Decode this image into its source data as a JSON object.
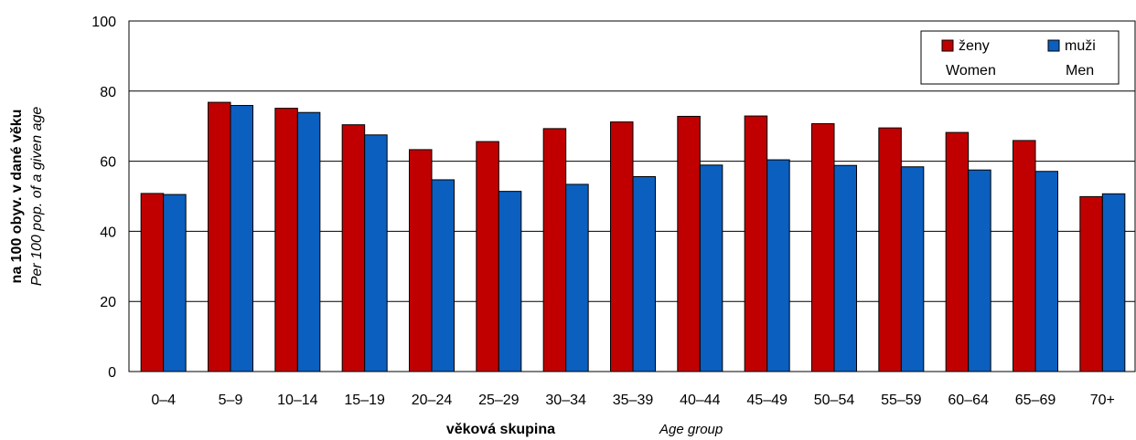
{
  "chart_data": {
    "type": "bar",
    "categories": [
      "0–4",
      "5–9",
      "10–14",
      "15–19",
      "20–24",
      "25–29",
      "30–34",
      "35–39",
      "40–44",
      "45–49",
      "50–54",
      "55–59",
      "60–64",
      "65–69",
      "70+"
    ],
    "series": [
      {
        "name": "ženy",
        "name_en": "Women",
        "color": "#c00000",
        "values": [
          50.8,
          76.8,
          75.1,
          70.4,
          63.3,
          65.6,
          69.3,
          71.2,
          72.8,
          72.9,
          70.7,
          69.5,
          68.2,
          65.9,
          49.9
        ]
      },
      {
        "name": "muži",
        "name_en": "Men",
        "color": "#0b5fbf",
        "values": [
          50.5,
          75.9,
          73.9,
          67.5,
          54.7,
          51.4,
          53.4,
          55.6,
          58.9,
          60.4,
          58.8,
          58.4,
          57.5,
          57.1,
          50.7
        ]
      }
    ],
    "xlabel": "věková skupina",
    "xlabel_en": "Age group",
    "ylabel": "na 100 obyv. v dané věku",
    "ylabel_en": "Per 100 pop. of a given age",
    "ylim": [
      0,
      100
    ],
    "yticks": [
      0,
      20,
      40,
      60,
      80,
      100
    ],
    "grid": true,
    "legend": "top-right"
  }
}
